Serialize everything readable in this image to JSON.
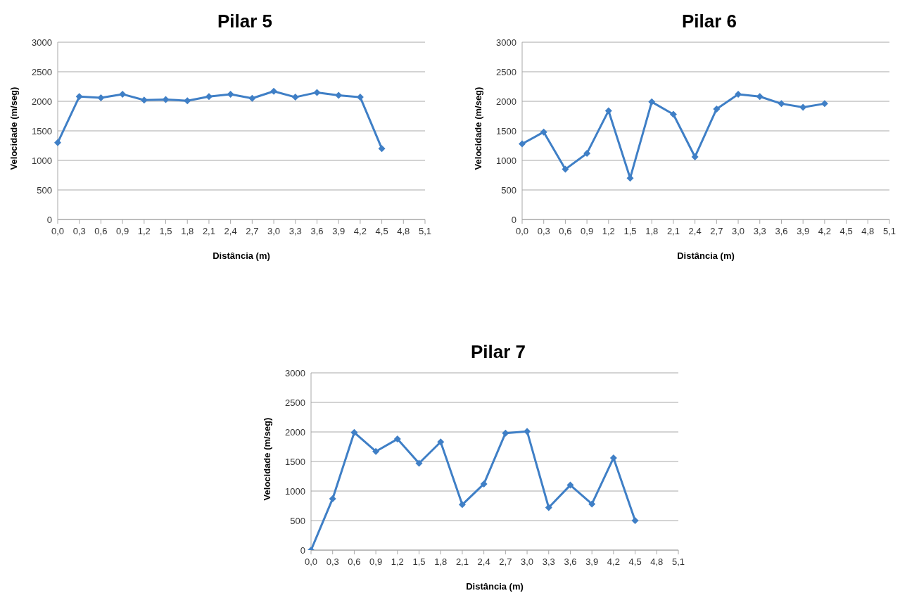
{
  "chart_data": [
    {
      "type": "line",
      "title": "Pilar 5",
      "xlabel": "Distância (m)",
      "ylabel": "Velocidade (m/seg)",
      "categories": [
        "0,0",
        "0,3",
        "0,6",
        "0,9",
        "1,2",
        "1,5",
        "1,8",
        "2,1",
        "2,4",
        "2,7",
        "3,0",
        "3,3",
        "3,6",
        "3,9",
        "4,2",
        "4,5",
        "4,8",
        "5,1"
      ],
      "series": [
        {
          "color": "#3f7fc6",
          "values": [
            1300,
            2080,
            2060,
            2120,
            2020,
            2030,
            2010,
            2080,
            2120,
            2050,
            2170,
            2070,
            2150,
            2100,
            2070,
            1200,
            null,
            null
          ]
        }
      ],
      "ylim": [
        0,
        3000
      ],
      "yticks": [
        0,
        500,
        1000,
        1500,
        2000,
        2500,
        3000
      ],
      "grid": "y",
      "marker": "diamond",
      "line_style": "solid"
    },
    {
      "type": "line",
      "title": "Pilar 6",
      "xlabel": "Distância (m)",
      "ylabel": "Velocidade (m/seg)",
      "categories": [
        "0,0",
        "0,3",
        "0,6",
        "0,9",
        "1,2",
        "1,5",
        "1,8",
        "2,1",
        "2,4",
        "2,7",
        "3,0",
        "3,3",
        "3,6",
        "3,9",
        "4,2",
        "4,5",
        "4,8",
        "5,1"
      ],
      "series": [
        {
          "color": "#3f7fc6",
          "values": [
            1280,
            1480,
            850,
            1120,
            1840,
            700,
            1990,
            1780,
            1060,
            1870,
            2120,
            2080,
            1960,
            1900,
            1960,
            null,
            null,
            null
          ]
        }
      ],
      "ylim": [
        0,
        3000
      ],
      "yticks": [
        0,
        500,
        1000,
        1500,
        2000,
        2500,
        3000
      ],
      "grid": "y",
      "marker": "diamond",
      "line_style": "solid"
    },
    {
      "type": "line",
      "title": "Pilar 7",
      "xlabel": "Distância (m)",
      "ylabel": "Velocidade (m/seg)",
      "categories": [
        "0,0",
        "0,3",
        "0,6",
        "0,9",
        "1,2",
        "1,5",
        "1,8",
        "2,1",
        "2,4",
        "2,7",
        "3,0",
        "3,3",
        "3,6",
        "3,9",
        "4,2",
        "4,5",
        "4,8",
        "5,1"
      ],
      "series": [
        {
          "color": "#3f7fc6",
          "values": [
            0,
            870,
            1990,
            1670,
            1880,
            1470,
            1830,
            770,
            1120,
            1980,
            2010,
            720,
            1100,
            780,
            1560,
            500,
            null,
            null
          ]
        }
      ],
      "ylim": [
        0,
        3000
      ],
      "yticks": [
        0,
        500,
        1000,
        1500,
        2000,
        2500,
        3000
      ],
      "grid": "y",
      "marker": "diamond",
      "line_style": "solid"
    }
  ]
}
